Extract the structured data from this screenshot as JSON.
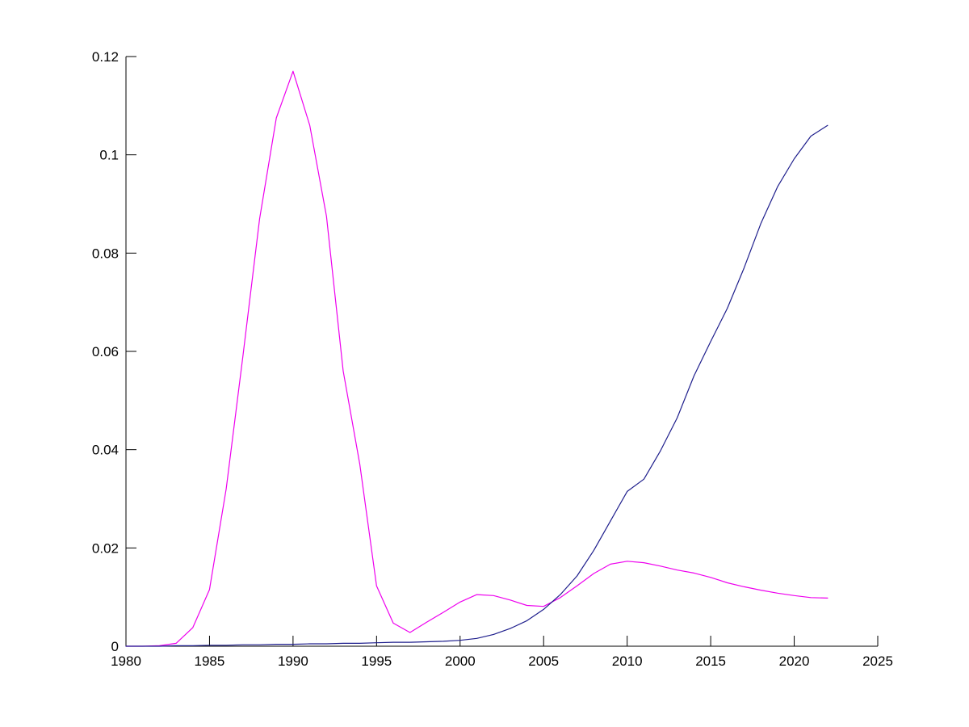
{
  "chart_data": {
    "type": "line",
    "title": "",
    "xlabel": "",
    "ylabel": "",
    "grid": false,
    "legend": "none",
    "background_color": "#ffffff",
    "axis_color": "#000000",
    "xlim": [
      1980,
      2025
    ],
    "ylim": [
      0,
      0.12
    ],
    "xticks": [
      1980,
      1985,
      1990,
      1995,
      2000,
      2005,
      2010,
      2015,
      2020,
      2025
    ],
    "xtick_labels": [
      "1980",
      "1985",
      "1990",
      "1995",
      "2000",
      "2005",
      "2010",
      "2015",
      "2020",
      "2025"
    ],
    "yticks": [
      0,
      0.02,
      0.04,
      0.06,
      0.08,
      0.1,
      0.12
    ],
    "ytick_labels": [
      "0",
      "0.02",
      "0.04",
      "0.06",
      "0.08",
      "0.1",
      "0.12"
    ],
    "x": [
      1980,
      1981,
      1982,
      1983,
      1984,
      1985,
      1986,
      1987,
      1988,
      1989,
      1990,
      1991,
      1992,
      1993,
      1994,
      1995,
      1996,
      1997,
      1998,
      1999,
      2000,
      2001,
      2002,
      2003,
      2004,
      2005,
      2006,
      2007,
      2008,
      2009,
      2010,
      2011,
      2012,
      2013,
      2014,
      2015,
      2016,
      2017,
      2018,
      2019,
      2020,
      2021,
      2022
    ],
    "series": [
      {
        "name": "magenta-series",
        "color": "#ee00ee",
        "values": [
          0.0,
          0.0,
          0.0001,
          0.0006,
          0.0038,
          0.0115,
          0.032,
          0.059,
          0.087,
          0.1075,
          0.117,
          0.106,
          0.0875,
          0.056,
          0.037,
          0.0123,
          0.0047,
          0.0028,
          0.0049,
          0.0069,
          0.009,
          0.0105,
          0.0103,
          0.0094,
          0.0083,
          0.0081,
          0.0099,
          0.0123,
          0.0148,
          0.0167,
          0.0173,
          0.017,
          0.0163,
          0.0155,
          0.0149,
          0.014,
          0.0129,
          0.0121,
          0.0114,
          0.0108,
          0.0103,
          0.0099,
          0.0098
        ]
      },
      {
        "name": "navy-series",
        "color": "#1e1e8c",
        "values": [
          0.0,
          0.0,
          0.0,
          0.0001,
          0.0001,
          0.0002,
          0.0002,
          0.0003,
          0.0003,
          0.0004,
          0.0004,
          0.0005,
          0.0005,
          0.0006,
          0.0006,
          0.0007,
          0.0008,
          0.0008,
          0.0009,
          0.001,
          0.0012,
          0.0016,
          0.0024,
          0.0036,
          0.0052,
          0.0075,
          0.0105,
          0.0143,
          0.0195,
          0.0255,
          0.0315,
          0.034,
          0.0398,
          0.0465,
          0.055,
          0.062,
          0.0688,
          0.077,
          0.086,
          0.0935,
          0.0992,
          0.1038,
          0.106
        ]
      }
    ]
  }
}
